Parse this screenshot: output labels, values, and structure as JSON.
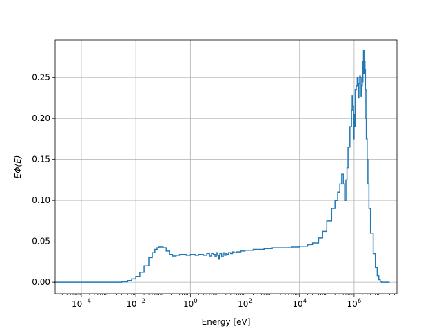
{
  "chart_data": {
    "type": "line",
    "xscale": "log",
    "xlabel": "Energy [eV]",
    "ylabel": "EΦ(E)",
    "xlim": [
      1.1e-05,
      37000000.0
    ],
    "ylim": [
      -0.0142,
      0.296
    ],
    "grid": true,
    "x_ticks": [
      {
        "base": "10",
        "exp": "−4",
        "value": 0.0001
      },
      {
        "base": "10",
        "exp": "−2",
        "value": 0.01
      },
      {
        "base": "10",
        "exp": "0",
        "value": 1
      },
      {
        "base": "10",
        "exp": "2",
        "value": 100
      },
      {
        "base": "10",
        "exp": "4",
        "value": 10000
      },
      {
        "base": "10",
        "exp": "6",
        "value": 1000000
      }
    ],
    "y_ticks": [
      {
        "label": "0.00",
        "value": 0.0
      },
      {
        "label": "0.05",
        "value": 0.05
      },
      {
        "label": "0.10",
        "value": 0.1
      },
      {
        "label": "0.15",
        "value": 0.15
      },
      {
        "label": "0.20",
        "value": 0.2
      },
      {
        "label": "0.25",
        "value": 0.25
      }
    ],
    "series": [
      {
        "color": "#1f77b4",
        "x": [
          1e-05,
          0.0001,
          0.001,
          0.003,
          0.005,
          0.007,
          0.01,
          0.014,
          0.02,
          0.03,
          0.04,
          0.05,
          0.06,
          0.07,
          0.08,
          0.1,
          0.13,
          0.17,
          0.22,
          0.3,
          0.4,
          0.5,
          0.7,
          1,
          1.5,
          2,
          3,
          4,
          5,
          6,
          7,
          8,
          9,
          10,
          11,
          12,
          14,
          16,
          18,
          20,
          22,
          25,
          30,
          35,
          40,
          50,
          70,
          100,
          200,
          500,
          1000,
          2000,
          5000,
          10000,
          20000,
          30000,
          50000,
          70000,
          100000,
          150000,
          200000,
          250000,
          300000,
          350000,
          400000,
          450000,
          500000,
          550000,
          600000,
          700000,
          800000,
          850000,
          900000,
          950000,
          1000000,
          1050000,
          1100000,
          1200000,
          1300000,
          1400000,
          1500000,
          1600000,
          1700000,
          1800000,
          1900000,
          2000000,
          2100000,
          2200000,
          2300000,
          2400000,
          2500000,
          2600000,
          2700000,
          2800000,
          3000000,
          3200000,
          3500000,
          4000000,
          5000000,
          6000000,
          7000000,
          8000000,
          9000000,
          10000000,
          12000000,
          15000000,
          17000000,
          20000000
        ],
        "y": [
          0.0,
          0.0,
          0.0,
          0.0005,
          0.002,
          0.004,
          0.007,
          0.012,
          0.02,
          0.03,
          0.036,
          0.04,
          0.042,
          0.043,
          0.043,
          0.042,
          0.038,
          0.034,
          0.032,
          0.033,
          0.034,
          0.034,
          0.033,
          0.034,
          0.033,
          0.034,
          0.033,
          0.035,
          0.032,
          0.035,
          0.034,
          0.031,
          0.036,
          0.033,
          0.028,
          0.035,
          0.031,
          0.036,
          0.033,
          0.035,
          0.034,
          0.036,
          0.035,
          0.037,
          0.036,
          0.037,
          0.038,
          0.039,
          0.04,
          0.041,
          0.042,
          0.042,
          0.043,
          0.044,
          0.046,
          0.048,
          0.054,
          0.062,
          0.075,
          0.09,
          0.1,
          0.11,
          0.12,
          0.132,
          0.12,
          0.1,
          0.125,
          0.14,
          0.165,
          0.19,
          0.21,
          0.228,
          0.215,
          0.175,
          0.205,
          0.19,
          0.235,
          0.24,
          0.25,
          0.225,
          0.243,
          0.252,
          0.25,
          0.227,
          0.24,
          0.245,
          0.27,
          0.283,
          0.255,
          0.27,
          0.26,
          0.235,
          0.2,
          0.175,
          0.15,
          0.12,
          0.09,
          0.06,
          0.035,
          0.018,
          0.008,
          0.003,
          0.001,
          0.0,
          0.0,
          0.0,
          0.0,
          0.0
        ]
      }
    ]
  }
}
